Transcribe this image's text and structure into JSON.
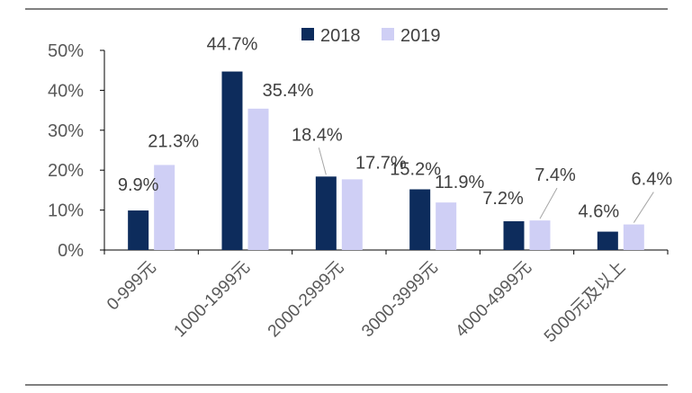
{
  "chart_data": {
    "type": "bar",
    "title": "",
    "xlabel": "",
    "ylabel": "",
    "categories": [
      "0-999元",
      "1000-1999元",
      "2000-2999元",
      "3000-3999元",
      "4000-4999元",
      "5000元及以上"
    ],
    "series": [
      {
        "name": "2018",
        "color": "#0d2c5c",
        "values": [
          9.9,
          44.7,
          18.4,
          15.2,
          7.2,
          4.6
        ],
        "labels": [
          "9.9%",
          "44.7%",
          "18.4%",
          "15.2%",
          "7.2%",
          "4.6%"
        ]
      },
      {
        "name": "2019",
        "color": "#cfcff5",
        "values": [
          21.3,
          35.4,
          17.7,
          11.9,
          7.4,
          6.4
        ],
        "labels": [
          "21.3%",
          "35.4%",
          "17.7%",
          "11.9%",
          "7.4%",
          "6.4%"
        ]
      }
    ],
    "ylim": [
      0,
      50
    ],
    "yticks": [
      0,
      10,
      20,
      30,
      40,
      50
    ],
    "ytick_labels": [
      "0%",
      "10%",
      "20%",
      "30%",
      "40%",
      "50%"
    ],
    "legend": "top-center",
    "grid": false
  }
}
